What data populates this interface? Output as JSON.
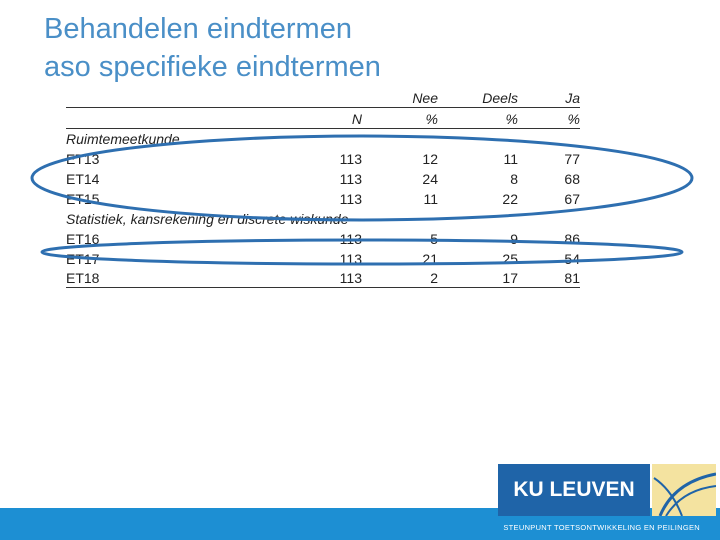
{
  "title": {
    "line1": "Behandelen eindtermen",
    "line2": "aso specifieke eindtermen"
  },
  "table": {
    "headers": {
      "n": "N",
      "nee_top": "Nee",
      "nee_bottom": "%",
      "deels_top": "Deels",
      "deels_bottom": "%",
      "ja_top": "Ja",
      "ja_bottom": "%"
    },
    "section1": "Ruimtemeetkunde",
    "section2": "Statistiek, kansrekening en discrete wiskunde",
    "rows": [
      {
        "label": "ET13",
        "n": "113",
        "nee": "12",
        "deels": "11",
        "ja": "77"
      },
      {
        "label": "ET14",
        "n": "113",
        "nee": "24",
        "deels": "8",
        "ja": "68"
      },
      {
        "label": "ET15",
        "n": "113",
        "nee": "11",
        "deels": "22",
        "ja": "67"
      },
      {
        "label": "ET16",
        "n": "113",
        "nee": "5",
        "deels": "9",
        "ja": "86"
      },
      {
        "label": "ET17",
        "n": "113",
        "nee": "21",
        "deels": "25",
        "ja": "54"
      },
      {
        "label": "ET18",
        "n": "113",
        "nee": "2",
        "deels": "17",
        "ja": "81"
      }
    ]
  },
  "logo": {
    "text": "KU LEUVEN",
    "subtitle": "STEUNPUNT TOETSONTWIKKELING EN PEILINGEN"
  },
  "colors": {
    "title": "#4a8fc7",
    "highlight_ellipse": "#2e6fb0",
    "logo_blue": "#1f64a8",
    "footer_blue": "#1d8fd3"
  }
}
